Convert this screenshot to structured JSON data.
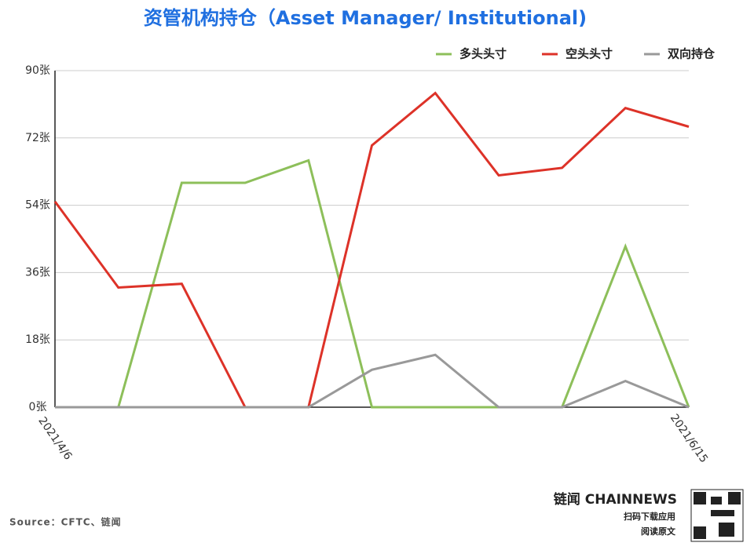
{
  "chart_data": {
    "type": "line",
    "title": "资管机构持仓（Asset Manager/ Institutional)",
    "x": [
      "2021/4/6",
      null,
      null,
      null,
      null,
      null,
      null,
      null,
      null,
      null,
      "2021/6/15"
    ],
    "series": [
      {
        "name": "多头头寸",
        "color": "#8dbf5a",
        "values": [
          0,
          0,
          60,
          60,
          66,
          0,
          0,
          0,
          0,
          43,
          0
        ]
      },
      {
        "name": "空头头寸",
        "color": "#dd3228",
        "values": [
          55,
          32,
          33,
          0,
          0,
          70,
          84,
          62,
          64,
          80,
          75
        ]
      },
      {
        "name": "双向持仓",
        "color": "#999999",
        "values": [
          0,
          0,
          0,
          0,
          0,
          10,
          14,
          0,
          0,
          7,
          0
        ]
      }
    ],
    "ylim": [
      0,
      90
    ],
    "yticks": [
      {
        "value": 0,
        "label": "0张"
      },
      {
        "value": 18,
        "label": "18张"
      },
      {
        "value": 36,
        "label": "36张"
      },
      {
        "value": 54,
        "label": "54张"
      },
      {
        "value": 72,
        "label": "72张"
      },
      {
        "value": 90,
        "label": "90张"
      }
    ],
    "grid": true,
    "legend": "top-right",
    "source": "Source：CFTC、链闻",
    "brand": "链闻 CHAINNEWS",
    "brand_line1": "扫码下载应用",
    "brand_line2": "阅读原文"
  }
}
